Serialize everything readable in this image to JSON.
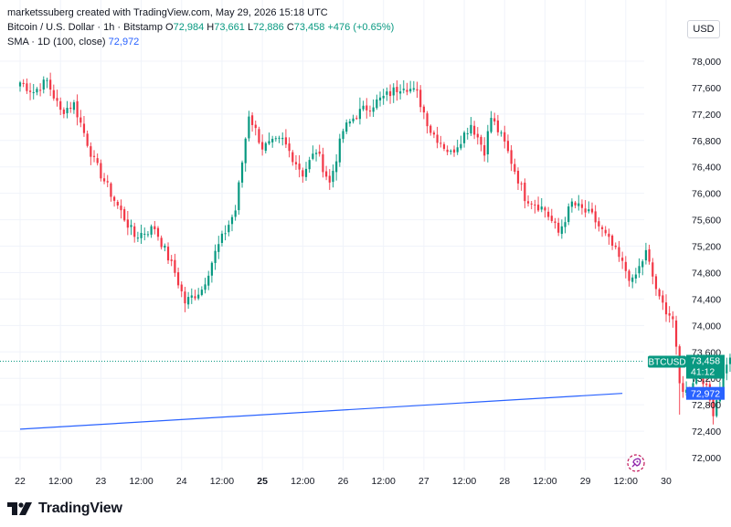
{
  "header": {
    "creator": "marketssuberg created with TradingView.com, May 29, 2026 15:18 UTC",
    "symbol": "Bitcoin / U.S. Dollar · 1h · Bitstamp",
    "o_label": "O",
    "o_value": "72,984",
    "h_label": "H",
    "h_value": "73,661",
    "l_label": "L",
    "l_value": "72,886",
    "c_label": "C",
    "c_value": "73,458",
    "change": "+476 (+0.65%)",
    "sma_label": "SMA · 1D (100, close)",
    "sma_value": "72,972"
  },
  "currency": "USD",
  "price_tags": {
    "symbol": "BTCUSD",
    "last": "73,458",
    "countdown": "41:12",
    "sma": "72,972"
  },
  "brand": "TradingView",
  "colors": {
    "up": "#089981",
    "down": "#f23645",
    "sma": "#2962ff",
    "text": "#131722"
  },
  "chart_data": {
    "type": "candlestick",
    "y_ticks": [
      "72,000",
      "72,400",
      "72,800",
      "73,200",
      "73,600",
      "74,000",
      "74,400",
      "74,800",
      "75,200",
      "75,600",
      "76,000",
      "76,400",
      "76,800",
      "77,200",
      "77,600",
      "78,000"
    ],
    "ylim": [
      71800,
      78300
    ],
    "x_ticks": [
      "22",
      "12:00",
      "23",
      "12:00",
      "24",
      "12:00",
      "25",
      "12:00",
      "26",
      "12:00",
      "27",
      "12:00",
      "28",
      "12:00",
      "29",
      "12:00",
      "30"
    ],
    "x_tick_hours": [
      0,
      12,
      24,
      36,
      48,
      60,
      72,
      84,
      96,
      108,
      120,
      132,
      144,
      156,
      168,
      180,
      192
    ],
    "bold_x_tick": "25",
    "last_price": 73458,
    "sma": {
      "start": [
        0,
        72430
      ],
      "end": [
        179,
        72972
      ]
    },
    "anchors": [
      [
        0,
        77680
      ],
      [
        4,
        77540
      ],
      [
        8,
        77700
      ],
      [
        12,
        77240
      ],
      [
        16,
        77350
      ],
      [
        22,
        76480
      ],
      [
        28,
        75900
      ],
      [
        34,
        75350
      ],
      [
        40,
        75480
      ],
      [
        46,
        74800
      ],
      [
        49,
        74350
      ],
      [
        54,
        74550
      ],
      [
        58,
        75100
      ],
      [
        64,
        75750
      ],
      [
        68,
        77200
      ],
      [
        72,
        76700
      ],
      [
        78,
        76800
      ],
      [
        84,
        76300
      ],
      [
        88,
        76650
      ],
      [
        92,
        76150
      ],
      [
        96,
        76950
      ],
      [
        100,
        77200
      ],
      [
        108,
        77450
      ],
      [
        114,
        77650
      ],
      [
        118,
        77500
      ],
      [
        122,
        76950
      ],
      [
        128,
        76600
      ],
      [
        134,
        77050
      ],
      [
        138,
        76650
      ],
      [
        140,
        77150
      ],
      [
        144,
        76750
      ],
      [
        150,
        75950
      ],
      [
        156,
        75750
      ],
      [
        160,
        75400
      ],
      [
        164,
        75850
      ],
      [
        170,
        75650
      ],
      [
        176,
        75200
      ],
      [
        182,
        74650
      ],
      [
        186,
        75100
      ],
      [
        190,
        74380
      ],
      [
        194,
        74100
      ],
      [
        196,
        73100
      ],
      [
        198,
        73000
      ],
      [
        202,
        73350
      ],
      [
        206,
        72700
      ],
      [
        210,
        73450
      ],
      [
        214,
        73550
      ],
      [
        218,
        73300
      ],
      [
        222,
        73300
      ],
      [
        226,
        73700
      ],
      [
        230,
        73250
      ],
      [
        236,
        73200
      ],
      [
        240,
        72800
      ],
      [
        242,
        73458
      ]
    ],
    "spikes": [
      [
        68,
        77150,
        77250
      ],
      [
        49,
        74200,
        74420
      ],
      [
        113,
        78010,
        77650
      ],
      [
        101,
        77850,
        77450
      ],
      [
        223,
        72550,
        73450
      ],
      [
        240,
        72400,
        73100
      ],
      [
        196,
        72650,
        73200
      ]
    ]
  }
}
